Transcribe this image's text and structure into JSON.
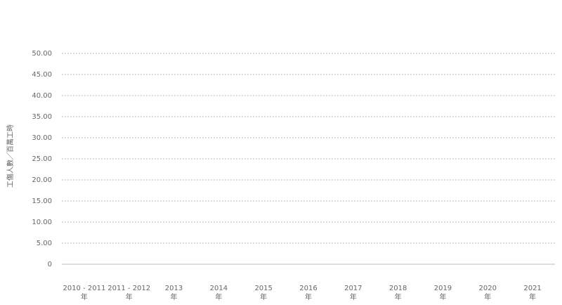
{
  "chart_data": {
    "type": "line",
    "y_label": "工傷人數／百萬工時",
    "categories": [
      "2010 - 2011\n年",
      "2011 - 2012\n年",
      "2013\n年",
      "2014\n年",
      "2015\n年",
      "2016\n年",
      "2017\n年",
      "2018\n年",
      "2019\n年",
      "2020\n年",
      "2021\n年"
    ],
    "series": [],
    "ylim": [
      0,
      50
    ],
    "yticks": [
      0,
      {
        "value": 5,
        "label": "5.00"
      },
      {
        "value": 10,
        "label": "10.00"
      },
      {
        "value": 15,
        "label": "15.00"
      },
      {
        "value": 20,
        "label": "20.00"
      },
      {
        "value": 25,
        "label": "25.00"
      },
      {
        "value": 30,
        "label": "30.00"
      },
      {
        "value": 35,
        "label": "35.00"
      },
      {
        "value": 40,
        "label": "40.00"
      },
      {
        "value": 45,
        "label": "45.00"
      },
      {
        "value": 50,
        "label": "50.00"
      }
    ],
    "grid": true
  }
}
